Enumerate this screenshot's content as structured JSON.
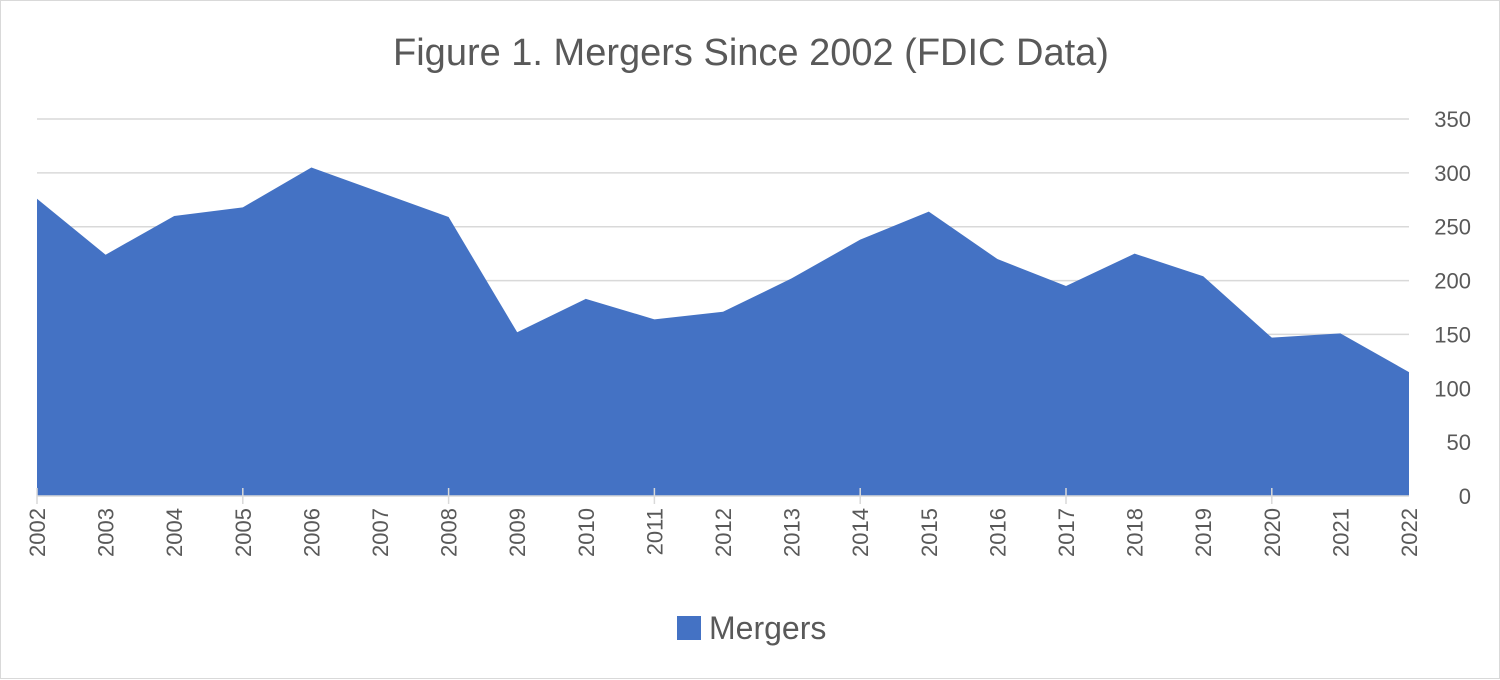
{
  "chart_data": {
    "type": "area",
    "title": "Figure 1. Mergers Since 2002 (FDIC Data)",
    "categories": [
      "2002",
      "2003",
      "2004",
      "2005",
      "2006",
      "2007",
      "2008",
      "2009",
      "2010",
      "2011",
      "2012",
      "2013",
      "2014",
      "2015",
      "2016",
      "2017",
      "2018",
      "2019",
      "2020",
      "2021",
      "2022"
    ],
    "series": [
      {
        "name": "Mergers",
        "color": "#4472C4",
        "values": [
          276,
          224,
          260,
          268,
          305,
          282,
          259,
          152,
          183,
          164,
          171,
          202,
          238,
          264,
          220,
          195,
          225,
          204,
          147,
          151,
          115
        ]
      }
    ],
    "ylim": [
      0,
      350
    ],
    "yticks": [
      0,
      50,
      100,
      150,
      200,
      250,
      300,
      350
    ],
    "yaxis_position": "right",
    "grid": true,
    "legend": "bottom"
  }
}
